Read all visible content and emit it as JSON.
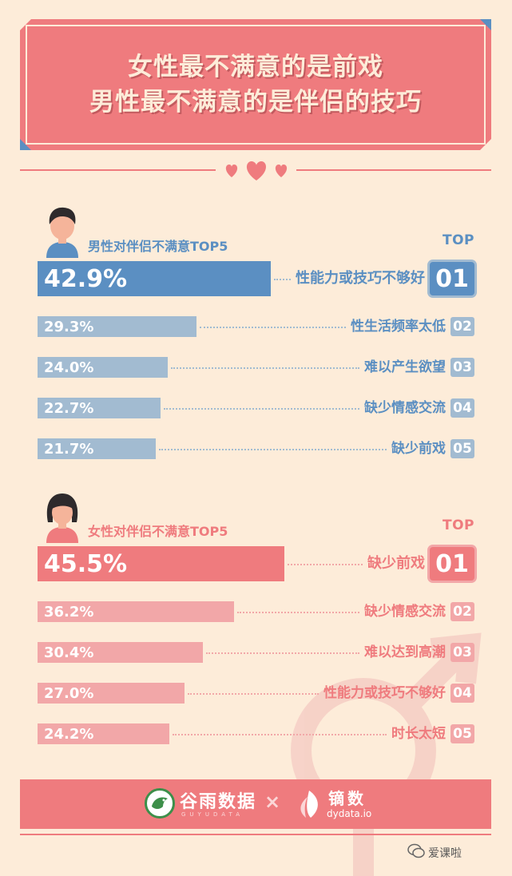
{
  "title": {
    "line1": "女性最不满意的是前戏",
    "line2": "男性最不满意的是伴侣的技巧"
  },
  "colors": {
    "background": "#fdecd9",
    "accent": "#ef7b7e",
    "male_primary": "#5b8fc2",
    "male_secondary": "#a2bbd1",
    "female_primary": "#ef7b7e",
    "female_secondary": "#f2a7a8"
  },
  "chart_data": [
    {
      "type": "bar",
      "title": "男性对伴侣不满意TOP5",
      "rank_header": "TOP",
      "categories": [
        "性能力或技巧不够好",
        "性生活频率太低",
        "难以产生欲望",
        "缺少情感交流",
        "缺少前戏"
      ],
      "values": [
        42.9,
        29.3,
        24.0,
        22.7,
        21.7
      ],
      "value_labels": [
        "42.9%",
        "29.3%",
        "24.0%",
        "22.7%",
        "21.7%"
      ],
      "ranks": [
        "01",
        "02",
        "03",
        "04",
        "05"
      ]
    },
    {
      "type": "bar",
      "title": "女性对伴侣不满意TOP5",
      "rank_header": "TOP",
      "categories": [
        "缺少前戏",
        "缺少情感交流",
        "难以达到高潮",
        "性能力或技巧不够好",
        "时长太短"
      ],
      "values": [
        45.5,
        36.2,
        30.4,
        27.0,
        24.2
      ],
      "value_labels": [
        "45.5%",
        "36.2%",
        "30.4%",
        "27.0%",
        "24.2%"
      ],
      "ranks": [
        "01",
        "02",
        "03",
        "04",
        "05"
      ]
    }
  ],
  "footer": {
    "brand1_name": "谷雨数据",
    "brand1_sub": "GUYUDATA",
    "times": "×",
    "brand2_name": "镝数",
    "brand2_sub": "dydata.io"
  },
  "credit": "爱课啦"
}
